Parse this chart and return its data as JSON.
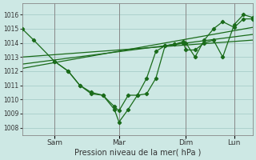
{
  "bg_color": "#cde8e4",
  "grid_color": "#a0c8c4",
  "line_color": "#1a6b1a",
  "xlabel": "Pression niveau de la mer( hPa )",
  "ylim": [
    1007.5,
    1016.8
  ],
  "yticks": [
    1008,
    1009,
    1010,
    1011,
    1012,
    1013,
    1014,
    1015,
    1016
  ],
  "xlim": [
    0,
    100
  ],
  "vline_positions": [
    14,
    42,
    71,
    92
  ],
  "xtick_positions": [
    14,
    42,
    71,
    92
  ],
  "xtick_labels": [
    "Sam",
    "Mar",
    "Dim",
    "Lun"
  ],
  "series1_x": [
    0,
    5,
    14,
    20,
    25,
    30,
    35,
    40,
    42,
    46,
    50,
    54,
    58,
    62,
    66,
    70,
    71,
    75,
    79,
    83,
    87,
    92,
    96,
    100
  ],
  "series1_y": [
    1015.0,
    1014.2,
    1012.7,
    1012.0,
    1011.0,
    1010.4,
    1010.3,
    1009.3,
    1008.4,
    1009.3,
    1010.3,
    1010.4,
    1011.5,
    1013.8,
    1013.9,
    1014.0,
    1013.5,
    1013.5,
    1014.0,
    1014.2,
    1013.0,
    1015.3,
    1016.0,
    1015.8
  ],
  "series2_x": [
    14,
    20,
    25,
    30,
    35,
    40,
    42,
    46,
    50,
    54,
    58,
    62,
    66,
    70,
    71,
    75,
    79,
    83,
    87,
    92,
    96,
    100
  ],
  "series2_y": [
    1012.7,
    1012.0,
    1011.0,
    1010.5,
    1010.3,
    1009.5,
    1009.2,
    1010.3,
    1010.3,
    1011.5,
    1013.4,
    1013.8,
    1013.9,
    1014.1,
    1014.0,
    1013.0,
    1014.2,
    1015.0,
    1015.5,
    1015.1,
    1015.7,
    1015.7
  ],
  "trend1_x": [
    0,
    100
  ],
  "trend1_y": [
    1012.2,
    1015.1
  ],
  "trend2_x": [
    0,
    100
  ],
  "trend2_y": [
    1012.5,
    1014.6
  ],
  "trend3_x": [
    0,
    100
  ],
  "trend3_y": [
    1013.0,
    1014.2
  ]
}
